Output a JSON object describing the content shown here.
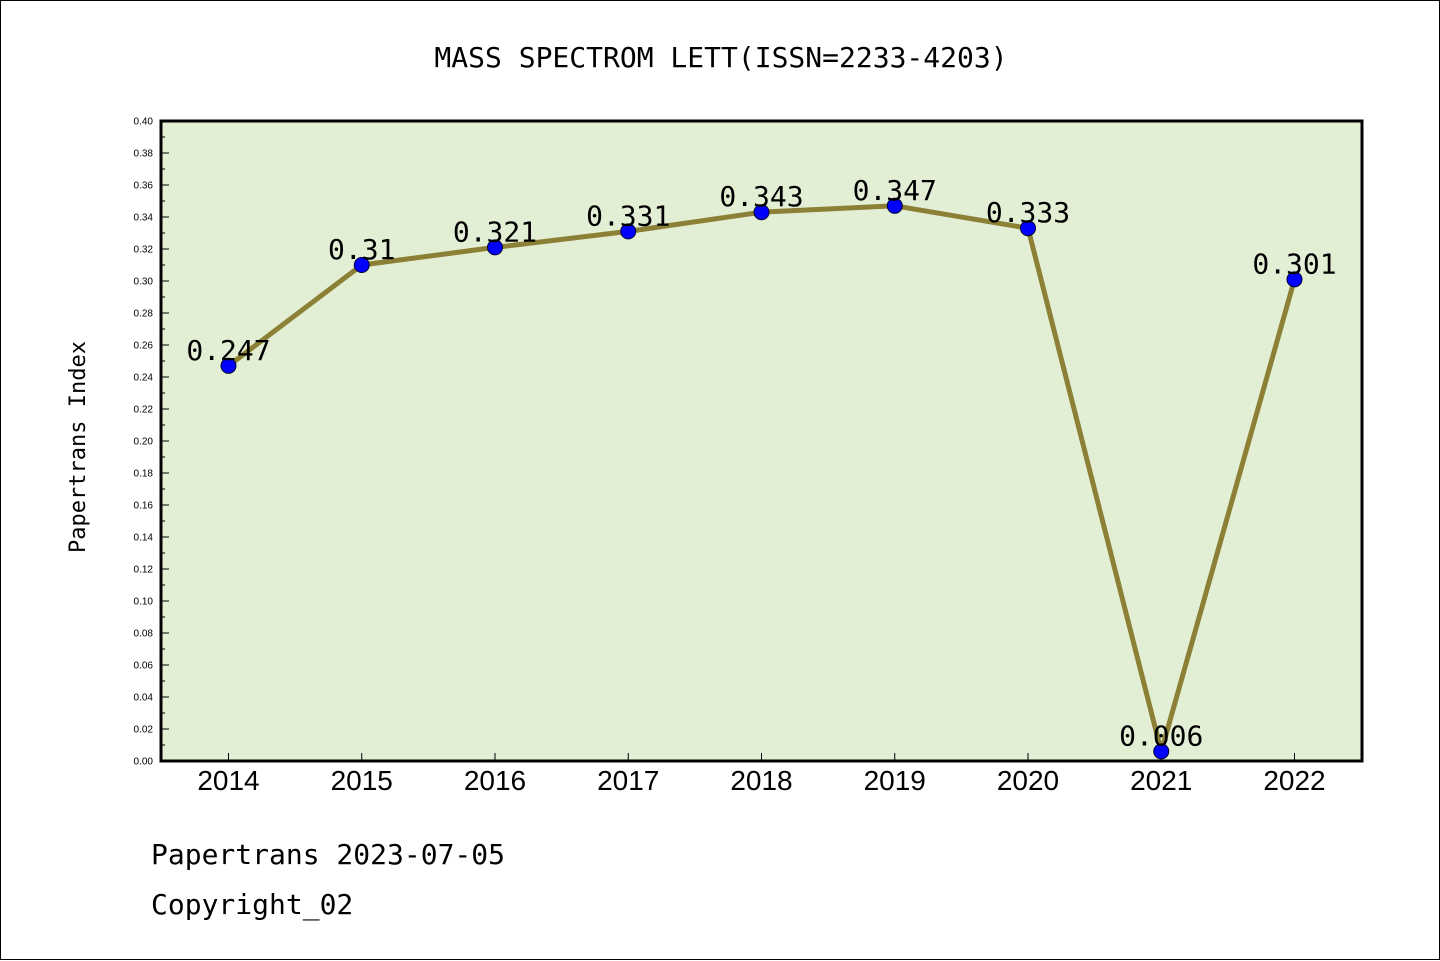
{
  "chart_data": {
    "type": "line",
    "title": "MASS SPECTROM LETT(ISSN=2233-4203)",
    "ylabel": "Papertrans Index",
    "xlabel": "",
    "categories": [
      "2014",
      "2015",
      "2016",
      "2017",
      "2018",
      "2019",
      "2020",
      "2021",
      "2022"
    ],
    "values": [
      0.247,
      0.31,
      0.321,
      0.331,
      0.343,
      0.347,
      0.333,
      0.006,
      0.301
    ],
    "value_labels": [
      "0.247",
      "0.31",
      "0.321",
      "0.331",
      "0.343",
      "0.347",
      "0.333",
      "0.006",
      "0.301"
    ],
    "ylim": [
      0,
      0.4
    ],
    "yticks": [
      "0.00",
      "0.02",
      "0.04",
      "0.06",
      "0.08",
      "0.10",
      "0.12",
      "0.14",
      "0.16",
      "0.18",
      "0.20",
      "0.22",
      "0.24",
      "0.26",
      "0.28",
      "0.30",
      "0.32",
      "0.34",
      "0.36",
      "0.38",
      "0.40"
    ],
    "grid": false,
    "legend": "none",
    "colors": {
      "plot_background": "#e2efd4",
      "line": "#8b8035",
      "marker": "#0000ff"
    }
  },
  "footer": {
    "line1": "Papertrans 2023-07-05",
    "line2": "Copyright_02"
  }
}
